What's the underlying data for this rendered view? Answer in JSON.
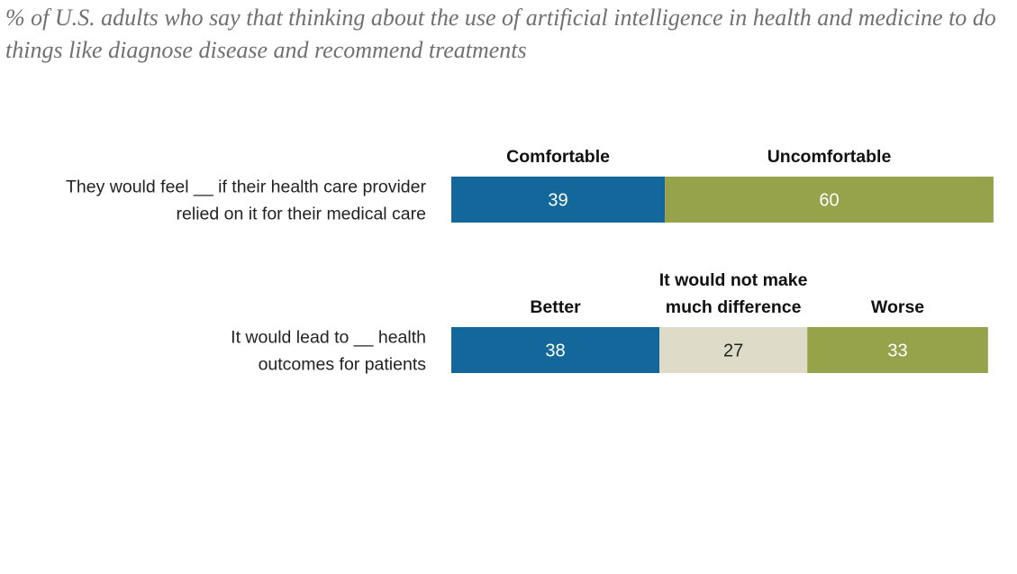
{
  "subtitle": "% of U.S. adults who say that thinking about the use of artificial intelligence in health and medicine to do things like diagnose disease and recommend treatments",
  "chart_data": {
    "type": "bar",
    "orientation": "horizontal",
    "stacked": true,
    "title": "",
    "subtitle": "% of U.S. adults who say that thinking about the use of artificial intelligence in health and medicine to do things like diagnose disease and recommend treatments",
    "xlabel": "",
    "ylabel": "",
    "xlim": [
      0,
      100
    ],
    "grid": false,
    "rows": [
      {
        "label_lines": [
          "They would feel __ if their health care provider",
          "relied on it for their medical care"
        ],
        "segments": [
          {
            "name_lines": [
              "Comfortable"
            ],
            "value": 39,
            "color": "#13679A",
            "text_color": "#FFFFFF"
          },
          {
            "name_lines": [
              "Uncomfortable"
            ],
            "value": 60,
            "color": "#96A34A",
            "text_color": "#FFFFFF"
          }
        ]
      },
      {
        "label_lines": [
          "It would lead to __ health",
          "outcomes for patients"
        ],
        "segments": [
          {
            "name_lines": [
              "Better"
            ],
            "value": 38,
            "color": "#13679A",
            "text_color": "#FFFFFF"
          },
          {
            "name_lines": [
              "It would not make",
              "much difference"
            ],
            "value": 27,
            "color": "#DEDCC8",
            "text_color": "#222222"
          },
          {
            "name_lines": [
              "Worse"
            ],
            "value": 33,
            "color": "#96A34A",
            "text_color": "#FFFFFF"
          }
        ]
      }
    ]
  }
}
